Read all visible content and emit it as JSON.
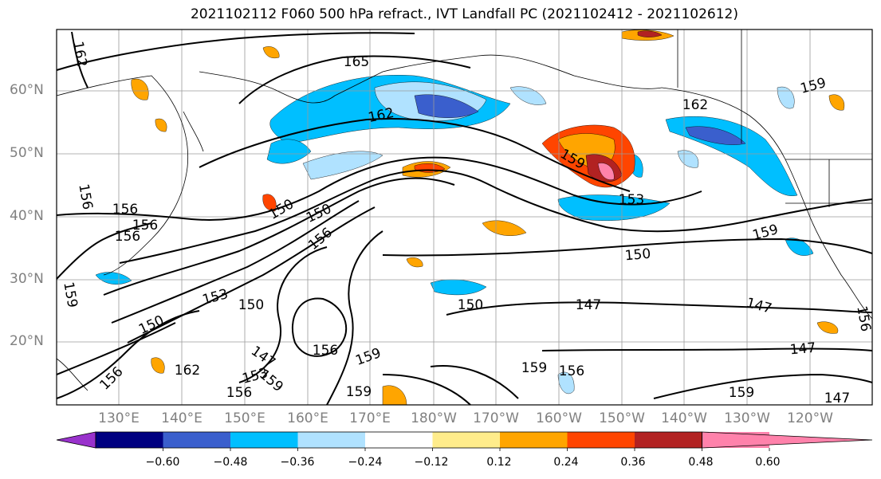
{
  "title": "2021102112 F060 500 hPa refract., IVT Landfall PC (2021102412 - 2021102612)",
  "lat_labels": [
    "60°N",
    "50°N",
    "40°N",
    "30°N",
    "20°N"
  ],
  "lon_labels": [
    "130°E",
    "140°E",
    "150°E",
    "160°E",
    "170°E",
    "180°W",
    "170°W",
    "160°W",
    "150°W",
    "140°W",
    "130°W",
    "120°W"
  ],
  "contour_labels": [
    "162",
    "165",
    "162",
    "162",
    "156",
    "159",
    "153",
    "159",
    "150",
    "156",
    "156",
    "156",
    "150",
    "153",
    "150",
    "156",
    "150",
    "159",
    "153",
    "150",
    "147",
    "147",
    "147",
    "159",
    "159",
    "150",
    "156",
    "162",
    "147",
    "159",
    "156",
    "159",
    "159",
    "156",
    "147",
    "156",
    "159",
    "156"
  ],
  "colorbar": {
    "colors": [
      "#9932cc",
      "#000080",
      "#3a5fcd",
      "#00bfff",
      "#b0e2ff",
      "#ffffff",
      "#ffec8b",
      "#ffa500",
      "#ff4500",
      "#b22222",
      "#ff82ab"
    ],
    "tick_labels": [
      "−0.60",
      "−0.48",
      "−0.36",
      "−0.24",
      "−0.12",
      "0.12",
      "0.24",
      "0.36",
      "0.48",
      "0.60"
    ]
  }
}
